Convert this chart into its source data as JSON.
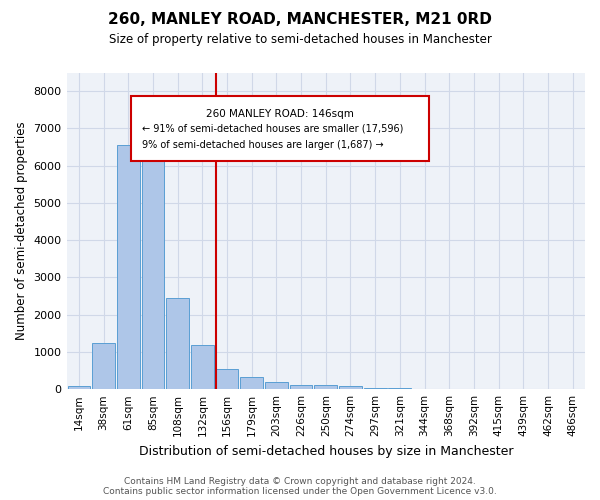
{
  "title": "260, MANLEY ROAD, MANCHESTER, M21 0RD",
  "subtitle": "Size of property relative to semi-detached houses in Manchester",
  "xlabel": "Distribution of semi-detached houses by size in Manchester",
  "ylabel": "Number of semi-detached properties",
  "footnote1": "Contains HM Land Registry data © Crown copyright and database right 2024.",
  "footnote2": "Contains public sector information licensed under the Open Government Licence v3.0.",
  "bin_labels": [
    "14sqm",
    "38sqm",
    "61sqm",
    "85sqm",
    "108sqm",
    "132sqm",
    "156sqm",
    "179sqm",
    "203sqm",
    "226sqm",
    "250sqm",
    "274sqm",
    "297sqm",
    "321sqm",
    "344sqm",
    "368sqm",
    "392sqm",
    "415sqm",
    "439sqm",
    "462sqm",
    "486sqm"
  ],
  "bar_values": [
    75,
    1230,
    6550,
    6600,
    2450,
    1180,
    550,
    340,
    200,
    120,
    100,
    80,
    45,
    20,
    15,
    10,
    7,
    5,
    3,
    2,
    0
  ],
  "bar_color": "#aec6e8",
  "bar_edge_color": "#5a9fd4",
  "ylim": [
    0,
    8500
  ],
  "yticks": [
    0,
    1000,
    2000,
    3000,
    4000,
    5000,
    6000,
    7000,
    8000
  ],
  "red_line_x": 5.57,
  "annotation_text_line1": "260 MANLEY ROAD: 146sqm",
  "annotation_text_line2": "← 91% of semi-detached houses are smaller (17,596)",
  "annotation_text_line3": "9% of semi-detached houses are larger (1,687) →",
  "annotation_color": "#cc0000",
  "grid_color": "#d0d8e8",
  "background_color": "#eef2f8"
}
